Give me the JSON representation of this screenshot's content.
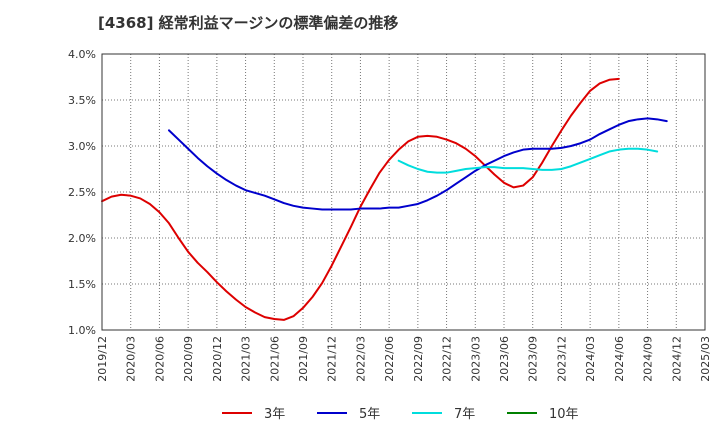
{
  "chart_data": {
    "type": "line",
    "title": "[4368]  経常利益マージンの標準偏差の推移",
    "xlabel": "",
    "ylabel": "",
    "y_unit": "%",
    "ylim": [
      1.0,
      4.0
    ],
    "y_ticks": [
      1.0,
      1.5,
      2.0,
      2.5,
      3.0,
      3.5,
      4.0
    ],
    "y_tick_labels": [
      "1.0%",
      "1.5%",
      "2.0%",
      "2.5%",
      "3.0%",
      "3.5%",
      "4.0%"
    ],
    "x_tick_labels": [
      "2019/12",
      "2020/03",
      "2020/06",
      "2020/09",
      "2020/12",
      "2021/03",
      "2021/06",
      "2021/09",
      "2021/12",
      "2022/03",
      "2022/06",
      "2022/09",
      "2022/12",
      "2023/03",
      "2023/06",
      "2023/09",
      "2023/12",
      "2024/03",
      "2024/06",
      "2024/09",
      "2024/12",
      "2025/03"
    ],
    "grid": true,
    "legend_position": "bottom",
    "series": [
      {
        "name": "3年",
        "color": "#dd0000",
        "start_index": 0,
        "values": [
          2.4,
          2.45,
          2.47,
          2.46,
          2.43,
          2.37,
          2.28,
          2.16,
          2.0,
          1.85,
          1.73,
          1.63,
          1.52,
          1.42,
          1.33,
          1.25,
          1.19,
          1.14,
          1.12,
          1.11,
          1.15,
          1.24,
          1.36,
          1.51,
          1.7,
          1.91,
          2.12,
          2.34,
          2.53,
          2.71,
          2.85,
          2.96,
          3.05,
          3.1,
          3.11,
          3.1,
          3.07,
          3.03,
          2.97,
          2.89,
          2.79,
          2.69,
          2.6,
          2.55,
          2.57,
          2.66,
          2.82,
          3.0,
          3.17,
          3.33,
          3.47,
          3.6,
          3.68,
          3.72,
          3.73
        ]
      },
      {
        "name": "5年",
        "color": "#0000cc",
        "start_index": 7,
        "values": [
          3.17,
          3.07,
          2.97,
          2.87,
          2.78,
          2.7,
          2.63,
          2.57,
          2.52,
          2.49,
          2.46,
          2.42,
          2.38,
          2.35,
          2.33,
          2.32,
          2.31,
          2.31,
          2.31,
          2.31,
          2.32,
          2.32,
          2.32,
          2.33,
          2.33,
          2.35,
          2.37,
          2.41,
          2.46,
          2.52,
          2.59,
          2.66,
          2.73,
          2.79,
          2.84,
          2.89,
          2.93,
          2.96,
          2.97,
          2.97,
          2.97,
          2.98,
          3.0,
          3.03,
          3.07,
          3.13,
          3.18,
          3.23,
          3.27,
          3.29,
          3.3,
          3.29,
          3.27
        ]
      },
      {
        "name": "7年",
        "color": "#00dddd",
        "start_index": 31,
        "values": [
          2.84,
          2.79,
          2.75,
          2.72,
          2.71,
          2.71,
          2.73,
          2.75,
          2.76,
          2.77,
          2.77,
          2.76,
          2.76,
          2.76,
          2.75,
          2.74,
          2.74,
          2.75,
          2.78,
          2.82,
          2.86,
          2.9,
          2.94,
          2.96,
          2.97,
          2.97,
          2.96,
          2.94
        ]
      },
      {
        "name": "10年",
        "color": "#008000",
        "start_index": 0,
        "values": []
      }
    ]
  }
}
